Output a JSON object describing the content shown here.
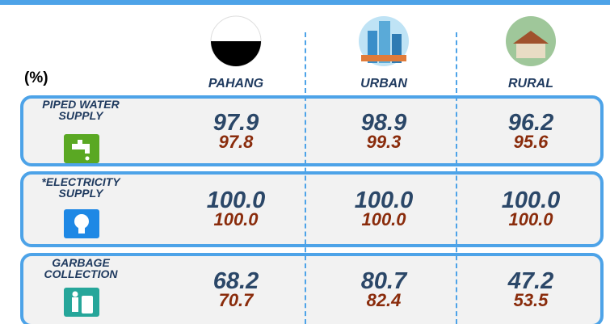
{
  "unit": "(%)",
  "columns": [
    "PAHANG",
    "URBAN",
    "RURAL"
  ],
  "rows": [
    {
      "label": [
        "PIPED WATER",
        "SUPPLY"
      ],
      "values": [
        [
          "97.9",
          "97.8"
        ],
        [
          "98.9",
          "99.3"
        ],
        [
          "96.2",
          "95.6"
        ]
      ]
    },
    {
      "label": [
        "*ELECTRICITY",
        "SUPPLY"
      ],
      "values": [
        [
          "100.0",
          "100.0"
        ],
        [
          "100.0",
          "100.0"
        ],
        [
          "100.0",
          "100.0"
        ]
      ]
    },
    {
      "label": [
        "GARBAGE",
        "COLLECTION"
      ],
      "values": [
        [
          "68.2",
          "70.7"
        ],
        [
          "80.7",
          "82.4"
        ],
        [
          "47.2",
          "53.5"
        ]
      ]
    }
  ]
}
